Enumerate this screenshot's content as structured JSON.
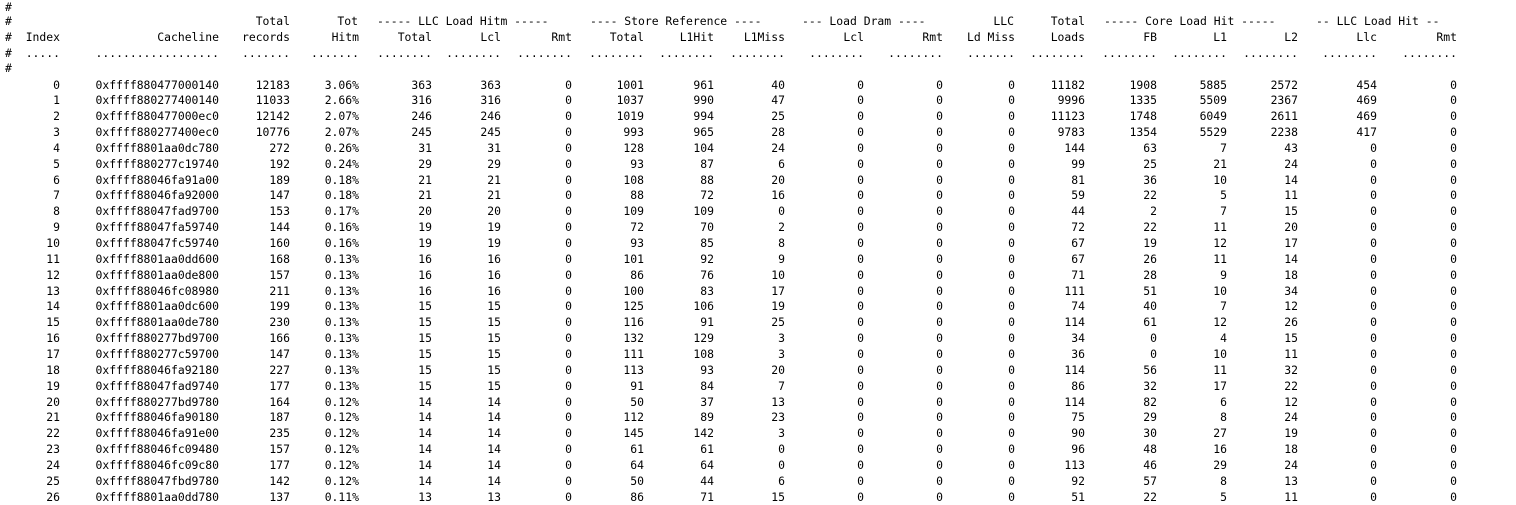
{
  "report": {
    "comment_lines": [
      "#",
      "#",
      "#",
      "#"
    ],
    "header_line1": {
      "total": "Total",
      "tot": "Tot",
      "llc_load_hitm": "----- LLC Load Hitm -----",
      "store_reference": "---- Store Reference ----",
      "load_dram": "--- Load Dram ----",
      "llc": "LLC",
      "total_loads": "Total",
      "core_load_hit": "----- Core Load Hit -----",
      "llc_load_hit": "-- LLC Load Hit --"
    },
    "columns": [
      "Index",
      "Cacheline",
      "records",
      "Hitm",
      "Total",
      "Lcl",
      "Rmt",
      "Total",
      "L1Hit",
      "L1Miss",
      "Lcl",
      "Rmt",
      "Ld Miss",
      "Loads",
      "FB",
      "L1",
      "L2",
      "Llc",
      "Rmt"
    ],
    "separator": {
      "index": ".....",
      "cacheline": "..................",
      "short": ".......",
      "dots8": "........"
    },
    "rows": [
      [
        "0",
        "0xffff880477000140",
        "12183",
        "3.06%",
        "363",
        "363",
        "0",
        "1001",
        "961",
        "40",
        "0",
        "0",
        "0",
        "11182",
        "1908",
        "5885",
        "2572",
        "454",
        "0"
      ],
      [
        "1",
        "0xffff880277400140",
        "11033",
        "2.66%",
        "316",
        "316",
        "0",
        "1037",
        "990",
        "47",
        "0",
        "0",
        "0",
        "9996",
        "1335",
        "5509",
        "2367",
        "469",
        "0"
      ],
      [
        "2",
        "0xffff880477000ec0",
        "12142",
        "2.07%",
        "246",
        "246",
        "0",
        "1019",
        "994",
        "25",
        "0",
        "0",
        "0",
        "11123",
        "1748",
        "6049",
        "2611",
        "469",
        "0"
      ],
      [
        "3",
        "0xffff880277400ec0",
        "10776",
        "2.07%",
        "245",
        "245",
        "0",
        "993",
        "965",
        "28",
        "0",
        "0",
        "0",
        "9783",
        "1354",
        "5529",
        "2238",
        "417",
        "0"
      ],
      [
        "4",
        "0xffff8801aa0dc780",
        "272",
        "0.26%",
        "31",
        "31",
        "0",
        "128",
        "104",
        "24",
        "0",
        "0",
        "0",
        "144",
        "63",
        "7",
        "43",
        "0",
        "0"
      ],
      [
        "5",
        "0xffff880277c19740",
        "192",
        "0.24%",
        "29",
        "29",
        "0",
        "93",
        "87",
        "6",
        "0",
        "0",
        "0",
        "99",
        "25",
        "21",
        "24",
        "0",
        "0"
      ],
      [
        "6",
        "0xffff88046fa91a00",
        "189",
        "0.18%",
        "21",
        "21",
        "0",
        "108",
        "88",
        "20",
        "0",
        "0",
        "0",
        "81",
        "36",
        "10",
        "14",
        "0",
        "0"
      ],
      [
        "7",
        "0xffff88046fa92000",
        "147",
        "0.18%",
        "21",
        "21",
        "0",
        "88",
        "72",
        "16",
        "0",
        "0",
        "0",
        "59",
        "22",
        "5",
        "11",
        "0",
        "0"
      ],
      [
        "8",
        "0xffff88047fad9700",
        "153",
        "0.17%",
        "20",
        "20",
        "0",
        "109",
        "109",
        "0",
        "0",
        "0",
        "0",
        "44",
        "2",
        "7",
        "15",
        "0",
        "0"
      ],
      [
        "9",
        "0xffff88047fa59740",
        "144",
        "0.16%",
        "19",
        "19",
        "0",
        "72",
        "70",
        "2",
        "0",
        "0",
        "0",
        "72",
        "22",
        "11",
        "20",
        "0",
        "0"
      ],
      [
        "10",
        "0xffff88047fc59740",
        "160",
        "0.16%",
        "19",
        "19",
        "0",
        "93",
        "85",
        "8",
        "0",
        "0",
        "0",
        "67",
        "19",
        "12",
        "17",
        "0",
        "0"
      ],
      [
        "11",
        "0xffff8801aa0dd600",
        "168",
        "0.13%",
        "16",
        "16",
        "0",
        "101",
        "92",
        "9",
        "0",
        "0",
        "0",
        "67",
        "26",
        "11",
        "14",
        "0",
        "0"
      ],
      [
        "12",
        "0xffff8801aa0de800",
        "157",
        "0.13%",
        "16",
        "16",
        "0",
        "86",
        "76",
        "10",
        "0",
        "0",
        "0",
        "71",
        "28",
        "9",
        "18",
        "0",
        "0"
      ],
      [
        "13",
        "0xffff88046fc08980",
        "211",
        "0.13%",
        "16",
        "16",
        "0",
        "100",
        "83",
        "17",
        "0",
        "0",
        "0",
        "111",
        "51",
        "10",
        "34",
        "0",
        "0"
      ],
      [
        "14",
        "0xffff8801aa0dc600",
        "199",
        "0.13%",
        "15",
        "15",
        "0",
        "125",
        "106",
        "19",
        "0",
        "0",
        "0",
        "74",
        "40",
        "7",
        "12",
        "0",
        "0"
      ],
      [
        "15",
        "0xffff8801aa0de780",
        "230",
        "0.13%",
        "15",
        "15",
        "0",
        "116",
        "91",
        "25",
        "0",
        "0",
        "0",
        "114",
        "61",
        "12",
        "26",
        "0",
        "0"
      ],
      [
        "16",
        "0xffff880277bd9700",
        "166",
        "0.13%",
        "15",
        "15",
        "0",
        "132",
        "129",
        "3",
        "0",
        "0",
        "0",
        "34",
        "0",
        "4",
        "15",
        "0",
        "0"
      ],
      [
        "17",
        "0xffff880277c59700",
        "147",
        "0.13%",
        "15",
        "15",
        "0",
        "111",
        "108",
        "3",
        "0",
        "0",
        "0",
        "36",
        "0",
        "10",
        "11",
        "0",
        "0"
      ],
      [
        "18",
        "0xffff88046fa92180",
        "227",
        "0.13%",
        "15",
        "15",
        "0",
        "113",
        "93",
        "20",
        "0",
        "0",
        "0",
        "114",
        "56",
        "11",
        "32",
        "0",
        "0"
      ],
      [
        "19",
        "0xffff88047fad9740",
        "177",
        "0.13%",
        "15",
        "15",
        "0",
        "91",
        "84",
        "7",
        "0",
        "0",
        "0",
        "86",
        "32",
        "17",
        "22",
        "0",
        "0"
      ],
      [
        "20",
        "0xffff880277bd9780",
        "164",
        "0.12%",
        "14",
        "14",
        "0",
        "50",
        "37",
        "13",
        "0",
        "0",
        "0",
        "114",
        "82",
        "6",
        "12",
        "0",
        "0"
      ],
      [
        "21",
        "0xffff88046fa90180",
        "187",
        "0.12%",
        "14",
        "14",
        "0",
        "112",
        "89",
        "23",
        "0",
        "0",
        "0",
        "75",
        "29",
        "8",
        "24",
        "0",
        "0"
      ],
      [
        "22",
        "0xffff88046fa91e00",
        "235",
        "0.12%",
        "14",
        "14",
        "0",
        "145",
        "142",
        "3",
        "0",
        "0",
        "0",
        "90",
        "30",
        "27",
        "19",
        "0",
        "0"
      ],
      [
        "23",
        "0xffff88046fc09480",
        "157",
        "0.12%",
        "14",
        "14",
        "0",
        "61",
        "61",
        "0",
        "0",
        "0",
        "0",
        "96",
        "48",
        "16",
        "18",
        "0",
        "0"
      ],
      [
        "24",
        "0xffff88046fc09c80",
        "177",
        "0.12%",
        "14",
        "14",
        "0",
        "64",
        "64",
        "0",
        "0",
        "0",
        "0",
        "113",
        "46",
        "29",
        "24",
        "0",
        "0"
      ],
      [
        "25",
        "0xffff88047fbd9780",
        "142",
        "0.12%",
        "14",
        "14",
        "0",
        "50",
        "44",
        "6",
        "0",
        "0",
        "0",
        "92",
        "57",
        "8",
        "13",
        "0",
        "0"
      ],
      [
        "26",
        "0xffff8801aa0dd780",
        "137",
        "0.11%",
        "13",
        "13",
        "0",
        "86",
        "71",
        "15",
        "0",
        "0",
        "0",
        "51",
        "22",
        "5",
        "11",
        "0",
        "0"
      ]
    ]
  }
}
